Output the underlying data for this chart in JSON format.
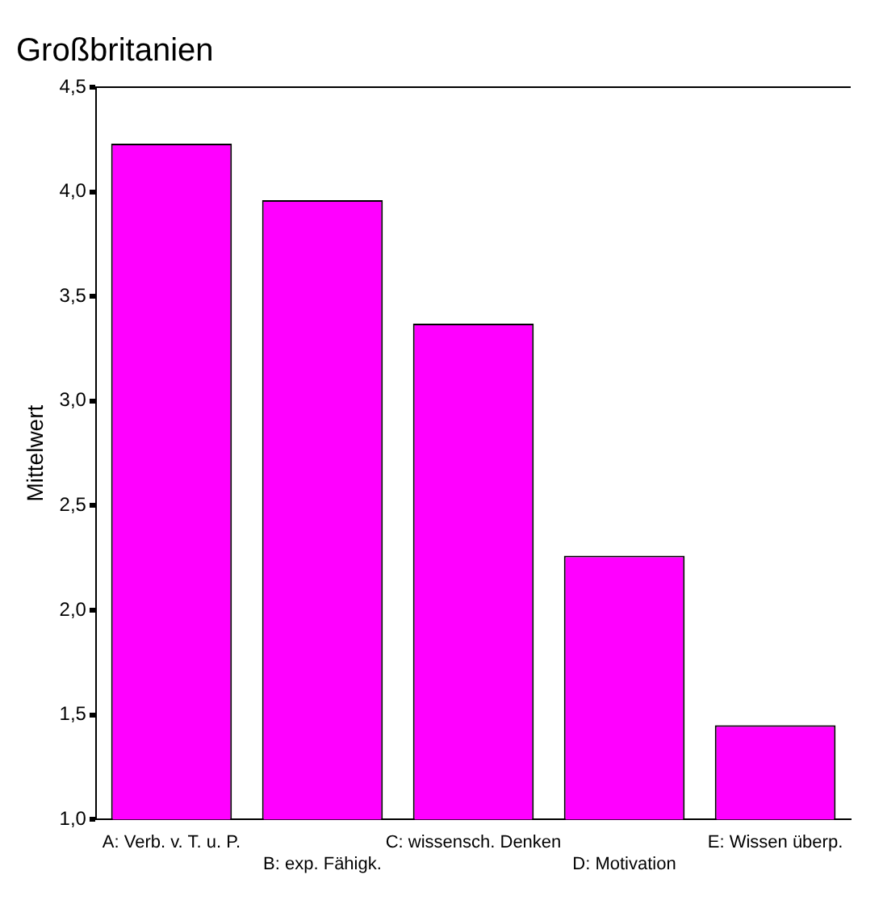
{
  "chart_data": {
    "type": "bar",
    "title": "Großbritanien",
    "ylabel": "Mittelwert",
    "categories": [
      "A: Verb. v. T. u. P.",
      "B: exp. Fähigk.",
      "C: wissensch. Denken",
      "D: Motivation",
      "E: Wissen überp."
    ],
    "values": [
      4.23,
      3.96,
      3.37,
      2.26,
      1.45
    ],
    "color": "#ff00ff",
    "ylim": [
      1,
      4.5
    ],
    "yticks": [
      {
        "value": 1,
        "label": "1,0"
      },
      {
        "value": 1.5,
        "label": "1,5"
      },
      {
        "value": 2,
        "label": "2,0"
      },
      {
        "value": 2.5,
        "label": "2,5"
      },
      {
        "value": 3,
        "label": "3,0"
      },
      {
        "value": 3.5,
        "label": "3,5"
      },
      {
        "value": 4,
        "label": "4,0"
      },
      {
        "value": 4.5,
        "label": "4,5"
      }
    ],
    "grid": false,
    "legend": false
  }
}
